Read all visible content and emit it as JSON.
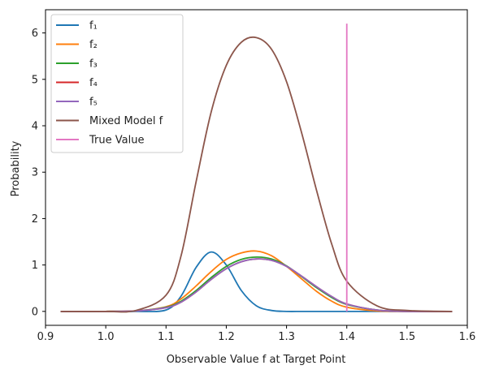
{
  "chart_data": {
    "type": "line",
    "title": "",
    "xlabel": "Observable Value f at Target Point",
    "ylabel": "Probability",
    "xlim": [
      0.9,
      1.6
    ],
    "ylim": [
      -0.3,
      6.5
    ],
    "xticks": [
      "0.9",
      "1.0",
      "1.1",
      "1.2",
      "1.3",
      "1.4",
      "1.5",
      "1.6"
    ],
    "yticks": [
      "0",
      "1",
      "2",
      "3",
      "4",
      "5",
      "6"
    ],
    "legend_position": "top-left",
    "grid": false,
    "sample_x": [
      0.925,
      1.0,
      1.05,
      1.1,
      1.125,
      1.15,
      1.175,
      1.2,
      1.225,
      1.25,
      1.275,
      1.3,
      1.325,
      1.35,
      1.375,
      1.4,
      1.45,
      1.5,
      1.575
    ],
    "series": [
      {
        "name": "f₁",
        "color": "#1f77b4",
        "values": [
          0.0,
          0.0,
          0.0,
          0.03,
          0.33,
          0.95,
          1.28,
          1.0,
          0.45,
          0.12,
          0.02,
          0.0,
          0.0,
          0.0,
          0.0,
          0.0,
          0.0,
          0.0,
          0.0
        ]
      },
      {
        "name": "f₂",
        "color": "#ff7f0e",
        "values": [
          0.0,
          0.0,
          0.01,
          0.1,
          0.27,
          0.55,
          0.86,
          1.12,
          1.26,
          1.3,
          1.2,
          0.97,
          0.7,
          0.43,
          0.22,
          0.09,
          0.01,
          0.0,
          0.0
        ]
      },
      {
        "name": "f₃",
        "color": "#2ca02c",
        "values": [
          0.0,
          0.0,
          0.01,
          0.09,
          0.22,
          0.45,
          0.73,
          0.97,
          1.12,
          1.17,
          1.13,
          0.98,
          0.75,
          0.51,
          0.3,
          0.15,
          0.03,
          0.0,
          0.0
        ]
      },
      {
        "name": "f₄",
        "color": "#d62728",
        "values": [
          0.0,
          0.0,
          0.01,
          0.08,
          0.2,
          0.42,
          0.69,
          0.92,
          1.07,
          1.13,
          1.1,
          0.97,
          0.76,
          0.53,
          0.32,
          0.16,
          0.03,
          0.0,
          0.0
        ]
      },
      {
        "name": "f₅",
        "color": "#9467bd",
        "values": [
          0.0,
          0.0,
          0.01,
          0.08,
          0.2,
          0.42,
          0.69,
          0.92,
          1.07,
          1.13,
          1.1,
          0.97,
          0.76,
          0.53,
          0.32,
          0.16,
          0.03,
          0.0,
          0.0
        ]
      },
      {
        "name": "Mixed Model f",
        "color": "#8c564b",
        "values": [
          0.0,
          0.0,
          0.02,
          0.35,
          1.2,
          2.8,
          4.3,
          5.3,
          5.8,
          5.9,
          5.65,
          4.95,
          3.85,
          2.6,
          1.45,
          0.65,
          0.12,
          0.02,
          0.0
        ]
      }
    ],
    "vertical_line": {
      "name": "True Value",
      "color": "#e377c2",
      "x": 1.4,
      "y_range": [
        0,
        6.2
      ]
    }
  }
}
